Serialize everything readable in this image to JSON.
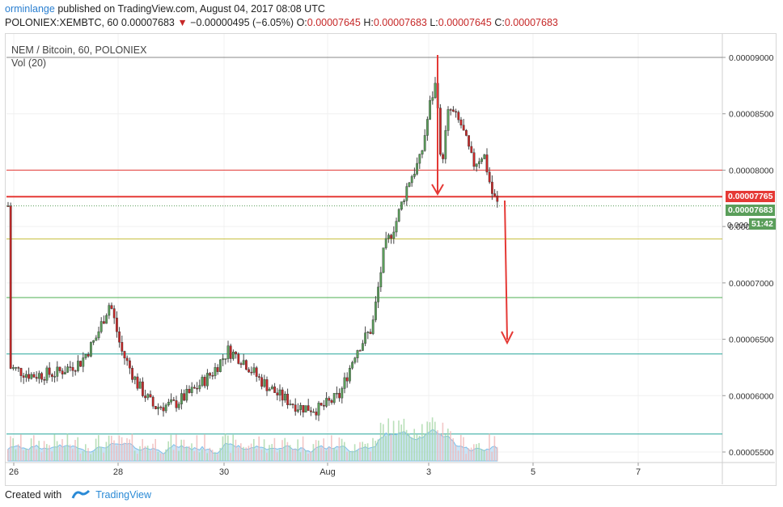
{
  "header": {
    "author": "orminlange",
    "published_text": "published on TradingView.com, August 04, 2017 08:08 UTC",
    "symbol": "POLONIEX:XEMBTC, 60",
    "last": "0.00007683",
    "change": "−0.00000495 (−6.05%)",
    "o_label": "O:",
    "o_val": "0.00007645",
    "h_label": "H:",
    "h_val": "0.00007683",
    "l_label": "L:",
    "l_val": "0.00007645",
    "c_label": "C:",
    "c_val": "0.00007683"
  },
  "legend": {
    "title": "NEM / Bitcoin, 60, POLONIEX",
    "volume": "Vol (20)"
  },
  "price_labels": {
    "resistance": "0.00007765",
    "last": "0.00007683",
    "partial": "0.000",
    "countdown": "51:42"
  },
  "footer": {
    "created_with": "Created with",
    "brand": "TradingView"
  },
  "colors": {
    "up": "#4a4a4a",
    "down": "#c62828",
    "bull_body": "#5a9e5a",
    "volume_area": "#9ecff0",
    "resistance": "#e53935"
  },
  "chart_data": {
    "type": "candlestick",
    "title": "NEM / Bitcoin, 60, POLONIEX",
    "x_ticks": [
      "26",
      "28",
      "30",
      "Aug",
      "3",
      "5",
      "7"
    ],
    "y_ticks": [
      "0.00009000",
      "0.00008500",
      "0.00008000",
      "0.00007500",
      "0.00007000",
      "0.00006500",
      "0.00006000",
      "0.00005500"
    ],
    "ylim": [
      5.45e-05,
      9.2e-05
    ],
    "horizontal_lines": [
      {
        "price": 9e-05,
        "color": "#888888"
      },
      {
        "price": 8e-05,
        "color": "#e53935"
      },
      {
        "price": 7.765e-05,
        "color": "#e53935"
      },
      {
        "price": 7.39e-05,
        "color": "#c8c040"
      },
      {
        "price": 6.87e-05,
        "color": "#4caf50"
      },
      {
        "price": 6.37e-05,
        "color": "#26a69a"
      },
      {
        "price": 5.66e-05,
        "color": "#26a69a"
      }
    ],
    "series": [
      {
        "name": "price",
        "points": [
          [
            "26",
            6.25e-05
          ],
          [
            "27",
            6.2e-05
          ],
          [
            "27.8",
            6.85e-05
          ],
          [
            "28.3",
            6e-05
          ],
          [
            "29",
            5.85e-05
          ],
          [
            "30",
            6.4e-05
          ],
          [
            "30.5",
            6.2e-05
          ],
          [
            "31",
            5.9e-05
          ],
          [
            "Aug 1",
            5.9e-05
          ],
          [
            "Aug 1.5",
            6.5e-05
          ],
          [
            "Aug 2",
            7.4e-05
          ],
          [
            "Aug 2.5",
            8e-05
          ],
          [
            "3",
            8.8e-05
          ],
          [
            "3.2",
            8e-05
          ],
          [
            "3.5",
            8.5e-05
          ],
          [
            "4",
            8e-05
          ],
          [
            "4.3",
            7.683e-05
          ]
        ]
      }
    ]
  }
}
